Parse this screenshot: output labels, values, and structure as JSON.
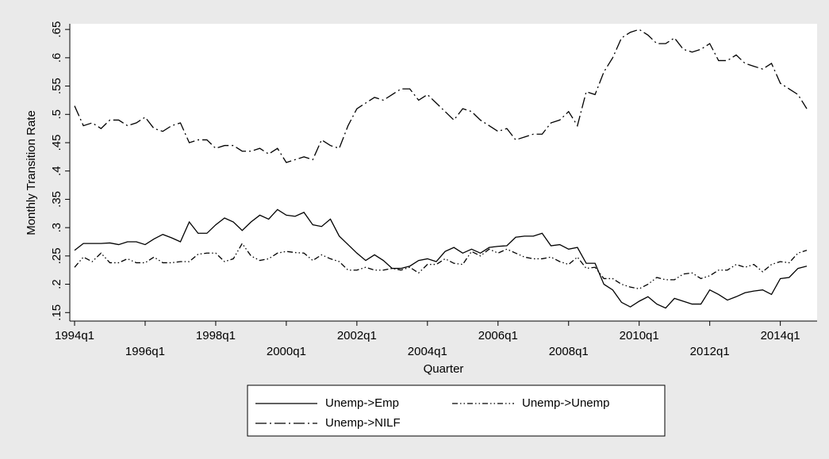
{
  "chart_data": {
    "type": "line",
    "ylabel": "Monthly Transition Rate",
    "xlabel": "Quarter",
    "categories": [
      "1994q1",
      null,
      null,
      null,
      null,
      null,
      null,
      null,
      "1996q1",
      null,
      null,
      null,
      null,
      null,
      null,
      null,
      "1998q1",
      null,
      null,
      null,
      null,
      null,
      null,
      null,
      "2000q1",
      null,
      null,
      null,
      null,
      null,
      null,
      null,
      "2002q1",
      null,
      null,
      null,
      null,
      null,
      null,
      null,
      "2004q1",
      null,
      null,
      null,
      null,
      null,
      null,
      null,
      "2006q1",
      null,
      null,
      null,
      null,
      null,
      null,
      null,
      "2008q1",
      null,
      null,
      null,
      null,
      null,
      null,
      null,
      "2010q1",
      null,
      null,
      null,
      null,
      null,
      null,
      null,
      "2012q1",
      null,
      null,
      null,
      null,
      null,
      null,
      null,
      "2014q1",
      null,
      null,
      null
    ],
    "ylim": [
      0.135,
      0.66
    ],
    "yticks": [
      {
        "value": 0.15,
        "label": ".15"
      },
      {
        "value": 0.2,
        "label": ".2"
      },
      {
        "value": 0.25,
        "label": ".25"
      },
      {
        "value": 0.3,
        "label": ".3"
      },
      {
        "value": 0.35,
        "label": ".35"
      },
      {
        "value": 0.4,
        "label": ".4"
      },
      {
        "value": 0.45,
        "label": ".45"
      },
      {
        "value": 0.5,
        "label": ".5"
      },
      {
        "value": 0.55,
        "label": ".55"
      },
      {
        "value": 0.6,
        "label": ".6"
      },
      {
        "value": 0.65,
        "label": ".65"
      }
    ],
    "series": [
      {
        "name": "Unemp->Emp",
        "color": "#000000",
        "dash": "none",
        "values": [
          0.26,
          0.272,
          0.272,
          0.272,
          0.273,
          0.27,
          0.275,
          0.275,
          0.27,
          0.28,
          0.288,
          0.282,
          0.275,
          0.31,
          0.29,
          0.29,
          0.305,
          0.317,
          0.31,
          0.295,
          0.31,
          0.322,
          0.315,
          0.332,
          0.322,
          0.32,
          0.327,
          0.305,
          0.302,
          0.315,
          0.285,
          0.27,
          0.255,
          0.242,
          0.252,
          0.242,
          0.228,
          0.228,
          0.232,
          0.242,
          0.245,
          0.24,
          0.258,
          0.265,
          0.255,
          0.262,
          0.255,
          0.265,
          0.267,
          0.268,
          0.283,
          0.285,
          0.285,
          0.29,
          0.268,
          0.27,
          0.262,
          0.265,
          0.237,
          0.237,
          0.2,
          0.19,
          0.168,
          0.16,
          0.17,
          0.178,
          0.165,
          0.158,
          0.175,
          0.17,
          0.165,
          0.165,
          0.19,
          0.182,
          0.172,
          0.178,
          0.185,
          0.188,
          0.19,
          0.182,
          0.21,
          0.212,
          0.228,
          0.232
        ]
      },
      {
        "name": "Unemp->Unemp",
        "color": "#000000",
        "dash": "7 3 1.5 3 1.5 3",
        "values": [
          0.23,
          0.248,
          0.24,
          0.255,
          0.238,
          0.238,
          0.245,
          0.238,
          0.238,
          0.248,
          0.238,
          0.238,
          0.24,
          0.24,
          0.253,
          0.255,
          0.255,
          0.24,
          0.245,
          0.272,
          0.25,
          0.242,
          0.245,
          0.255,
          0.258,
          0.256,
          0.255,
          0.242,
          0.252,
          0.245,
          0.24,
          0.225,
          0.225,
          0.23,
          0.225,
          0.225,
          0.228,
          0.225,
          0.23,
          0.22,
          0.235,
          0.235,
          0.245,
          0.237,
          0.235,
          0.258,
          0.25,
          0.262,
          0.255,
          0.262,
          0.255,
          0.248,
          0.245,
          0.245,
          0.248,
          0.24,
          0.235,
          0.248,
          0.228,
          0.23,
          0.21,
          0.21,
          0.2,
          0.195,
          0.192,
          0.2,
          0.212,
          0.208,
          0.208,
          0.218,
          0.22,
          0.21,
          0.215,
          0.225,
          0.225,
          0.235,
          0.23,
          0.235,
          0.222,
          0.235,
          0.24,
          0.238,
          0.255,
          0.26
        ]
      },
      {
        "name": "Unemp->NILF",
        "color": "#000000",
        "dash": "14 4 2 4",
        "values": [
          0.515,
          0.48,
          0.485,
          0.475,
          0.49,
          0.49,
          0.48,
          0.485,
          0.495,
          0.475,
          0.47,
          0.48,
          0.485,
          0.45,
          0.455,
          0.455,
          0.44,
          0.445,
          0.445,
          0.435,
          0.435,
          0.44,
          0.43,
          0.44,
          0.415,
          0.42,
          0.425,
          0.42,
          0.455,
          0.445,
          0.44,
          0.48,
          0.51,
          0.52,
          0.53,
          0.525,
          0.535,
          0.545,
          0.545,
          0.525,
          0.535,
          0.52,
          0.505,
          0.49,
          0.51,
          0.505,
          0.49,
          0.48,
          0.47,
          0.475,
          0.455,
          0.46,
          0.465,
          0.465,
          0.485,
          0.49,
          0.505,
          0.48,
          0.54,
          0.535,
          0.575,
          0.6,
          0.635,
          0.645,
          0.65,
          0.64,
          0.625,
          0.625,
          0.635,
          0.615,
          0.61,
          0.615,
          0.625,
          0.595,
          0.595,
          0.605,
          0.59,
          0.585,
          0.58,
          0.59,
          0.555,
          0.545,
          0.535,
          0.51
        ]
      }
    ]
  }
}
